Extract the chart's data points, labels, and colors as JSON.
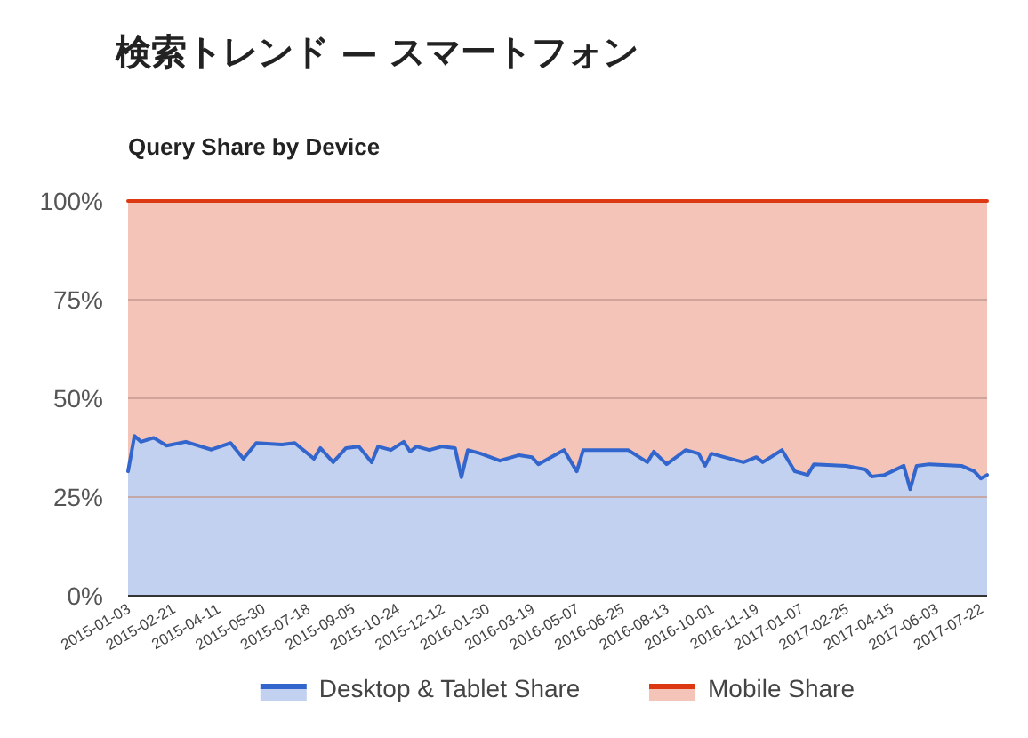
{
  "chart_data": {
    "type": "area",
    "title": "検索トレンド — スマートフォン",
    "subtitle": "Query Share by Device",
    "stacked": true,
    "grid": "y",
    "legend": "bottom",
    "x": [
      "2015-01-03",
      "2015-01-10",
      "2015-01-17",
      "2015-01-31",
      "2015-02-14",
      "2015-03-07",
      "2015-04-04",
      "2015-04-25",
      "2015-05-09",
      "2015-05-23",
      "2015-06-20",
      "2015-07-04",
      "2015-07-25",
      "2015-08-01",
      "2015-08-15",
      "2015-08-29",
      "2015-09-12",
      "2015-09-26",
      "2015-10-03",
      "2015-10-17",
      "2015-10-31",
      "2015-11-07",
      "2015-11-14",
      "2015-11-28",
      "2015-12-12",
      "2015-12-26",
      "2016-01-02",
      "2016-01-09",
      "2016-01-23",
      "2016-02-13",
      "2016-03-05",
      "2016-03-19",
      "2016-03-26",
      "2016-04-23",
      "2016-05-07",
      "2016-05-14",
      "2016-07-02",
      "2016-07-23",
      "2016-07-30",
      "2016-08-13",
      "2016-09-03",
      "2016-09-17",
      "2016-09-24",
      "2016-10-01",
      "2016-10-15",
      "2016-11-05",
      "2016-11-19",
      "2016-11-26",
      "2016-12-17",
      "2016-12-31",
      "2017-01-14",
      "2017-01-21",
      "2017-02-25",
      "2017-03-18",
      "2017-03-25",
      "2017-04-08",
      "2017-04-29",
      "2017-05-06",
      "2017-05-13",
      "2017-05-27",
      "2017-07-01",
      "2017-07-15",
      "2017-07-22",
      "2017-07-29"
    ],
    "series": [
      {
        "name": "Desktop & Tablet Share",
        "color": "#3366cc",
        "values": [
          31.5,
          40.5,
          39,
          40,
          38,
          39,
          37,
          38.7,
          34.7,
          38.7,
          38.3,
          38.7,
          34.7,
          37.4,
          33.8,
          37.4,
          37.8,
          33.8,
          37.8,
          36.9,
          39,
          36.5,
          37.8,
          36.9,
          37.8,
          37.4,
          30,
          36.9,
          36,
          34.2,
          35.6,
          35.1,
          33.3,
          36.9,
          31.5,
          36.9,
          36.9,
          33.8,
          36.5,
          33.3,
          36.9,
          36,
          32.9,
          36,
          35.1,
          33.8,
          35.1,
          33.8,
          36.9,
          31.5,
          30.6,
          33.3,
          32.9,
          32,
          30.2,
          30.6,
          32.9,
          27,
          32.9,
          33.3,
          32.9,
          31.5,
          29.7,
          30.6
        ]
      },
      {
        "name": "Mobile Share",
        "color": "#dc3912",
        "values": [
          68.5,
          59.5,
          61,
          60,
          62,
          61,
          63,
          61.3,
          65.3,
          61.3,
          61.7,
          61.3,
          65.3,
          62.6,
          66.2,
          62.6,
          62.2,
          66.2,
          62.2,
          63.1,
          61,
          63.5,
          62.2,
          63.1,
          62.2,
          62.6,
          70,
          63.1,
          64,
          65.8,
          64.4,
          64.9,
          66.7,
          63.1,
          68.5,
          63.1,
          63.1,
          66.2,
          63.5,
          66.7,
          63.1,
          64,
          67.1,
          64,
          64.9,
          66.2,
          64.9,
          66.2,
          63.1,
          68.5,
          69.4,
          66.7,
          67.1,
          68,
          69.8,
          69.4,
          67.1,
          73,
          67.1,
          66.7,
          67.1,
          68.5,
          70.3,
          69.4
        ]
      }
    ],
    "xlim": [
      "2015-01-03",
      "2017-07-29"
    ],
    "xticks": [
      "2015-01-03",
      "2015-02-21",
      "2015-04-11",
      "2015-05-30",
      "2015-07-18",
      "2015-09-05",
      "2015-10-24",
      "2015-12-12",
      "2016-01-30",
      "2016-03-19",
      "2016-05-07",
      "2016-06-25",
      "2016-08-13",
      "2016-10-01",
      "2016-11-19",
      "2017-01-07",
      "2017-02-25",
      "2017-04-15",
      "2017-06-03",
      "2017-07-22"
    ],
    "ylim": [
      0,
      100
    ],
    "yticks": [
      {
        "value": 0,
        "label": "0%"
      },
      {
        "value": 25,
        "label": "25%"
      },
      {
        "value": 50,
        "label": "50%"
      },
      {
        "value": 75,
        "label": "75%"
      },
      {
        "value": 100,
        "label": "100%"
      }
    ]
  }
}
